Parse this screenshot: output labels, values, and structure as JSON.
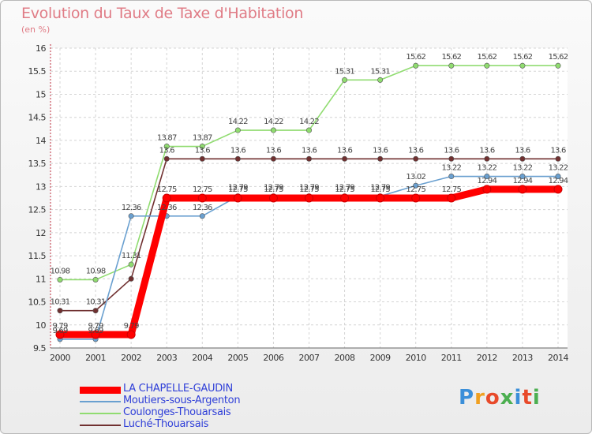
{
  "title": "Evolution du Taux de Taxe d'Habitation",
  "subtitle": "(en %)",
  "logo": {
    "text": "Proxiti",
    "letter_colors": [
      "#3b8fd9",
      "#f0a020",
      "#e84a2a",
      "#4caf50",
      "#3b8fd9",
      "#e84a2a",
      "#4caf50"
    ]
  },
  "chart_data": {
    "type": "line",
    "x": [
      2000,
      2001,
      2002,
      2003,
      2004,
      2005,
      2006,
      2007,
      2008,
      2009,
      2010,
      2011,
      2012,
      2013,
      2014
    ],
    "ylim": [
      9.5,
      16
    ],
    "yticks": [
      9.5,
      10,
      10.5,
      11,
      11.5,
      12,
      12.5,
      13,
      13.5,
      14,
      14.5,
      15,
      15.5,
      16
    ],
    "grid": true,
    "legend_position": "bottom-left",
    "series": [
      {
        "name": "LA CHAPELLE-GAUDIN",
        "color": "#ff0000",
        "values": [
          9.79,
          9.79,
          9.79,
          12.75,
          12.75,
          12.75,
          12.75,
          12.75,
          12.75,
          12.75,
          12.75,
          12.75,
          12.94,
          12.94,
          12.94
        ],
        "labels": [
          "9.79",
          "9.79",
          "9.79",
          "12.75",
          "12.75",
          "12.75",
          "12.75",
          "12.75",
          "12.75",
          "12.75",
          "12.75",
          "12.75",
          "12.94",
          "12.94",
          "12.94"
        ]
      },
      {
        "name": "Moutiers-sous-Argenton",
        "color": "#6aa0d0",
        "values": [
          9.69,
          9.69,
          12.36,
          12.36,
          12.36,
          12.79,
          12.79,
          12.79,
          12.79,
          12.79,
          13.02,
          13.22,
          13.22,
          13.22,
          13.22
        ],
        "labels": [
          "9.69",
          "9.69",
          "12.36",
          "12.36",
          "12.36",
          "12.79",
          "12.79",
          "12.79",
          "12.79",
          "12.79",
          "13.02",
          "13.22",
          "13.22",
          "13.22",
          "13.22"
        ]
      },
      {
        "name": "Coulonges-Thouarsais",
        "color": "#90dc70",
        "values": [
          10.98,
          10.98,
          11.31,
          13.87,
          13.87,
          14.22,
          14.22,
          14.22,
          15.31,
          15.31,
          15.62,
          15.62,
          15.62,
          15.62,
          15.62
        ],
        "labels": [
          "10.98",
          "10.98",
          "11.31",
          "13.87",
          "13.87",
          "14.22",
          "14.22",
          "14.22",
          "15.31",
          "15.31",
          "15.62",
          "15.62",
          "15.62",
          "15.62",
          "15.62"
        ]
      },
      {
        "name": "Luché-Thouarsais",
        "color": "#703030",
        "values": [
          10.31,
          10.31,
          11.0,
          13.6,
          13.6,
          13.6,
          13.6,
          13.6,
          13.6,
          13.6,
          13.6,
          13.6,
          13.6,
          13.6,
          13.6
        ],
        "labels": [
          "10.31",
          "10.31",
          "",
          "13.6",
          "13.6",
          "13.6",
          "13.6",
          "13.6",
          "13.6",
          "13.6",
          "13.6",
          "13.6",
          "13.6",
          "13.6",
          "13.6"
        ]
      }
    ]
  }
}
